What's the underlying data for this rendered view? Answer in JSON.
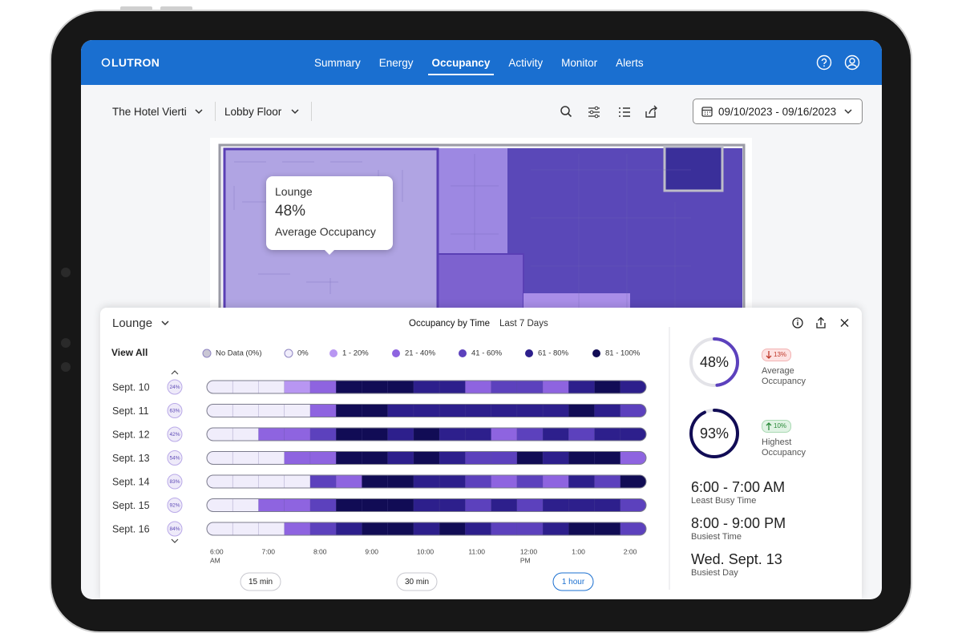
{
  "nav": {
    "logo": "LUTRON",
    "tabs": [
      "Summary",
      "Energy",
      "Occupancy",
      "Activity",
      "Monitor",
      "Alerts"
    ],
    "active": 2
  },
  "filters": {
    "property": "The Hotel Vierti",
    "floor": "Lobby Floor",
    "date_range": "09/10/2023 - 09/16/2023"
  },
  "tooltip": {
    "room": "Lounge",
    "value": "48%",
    "caption": "Average Occupancy"
  },
  "panel": {
    "room": "Lounge",
    "title": "Occupancy by Time",
    "period": "Last 7 Days",
    "view_all": "View All",
    "legend": [
      {
        "label": "No Data (0%)",
        "color": "#c9c6d4"
      },
      {
        "label": "0%",
        "color": "#f0edfb"
      },
      {
        "label": "1 - 20%",
        "color": "#b896f2"
      },
      {
        "label": "21 - 40%",
        "color": "#8e64e0"
      },
      {
        "label": "41 - 60%",
        "color": "#5c41bd"
      },
      {
        "label": "61 - 80%",
        "color": "#2d1f8c"
      },
      {
        "label": "81 - 100%",
        "color": "#110c55"
      }
    ],
    "rows": [
      {
        "date": "Sept. 10",
        "badge": "24%",
        "levels": [
          1,
          1,
          1,
          2,
          3,
          6,
          6,
          6,
          5,
          5,
          3,
          4,
          4,
          3,
          5,
          6,
          5
        ]
      },
      {
        "date": "Sept. 11",
        "badge": "63%",
        "levels": [
          1,
          1,
          1,
          1,
          3,
          6,
          6,
          5,
          5,
          5,
          5,
          5,
          5,
          5,
          6,
          5,
          4
        ]
      },
      {
        "date": "Sept. 12",
        "badge": "42%",
        "levels": [
          1,
          1,
          3,
          3,
          4,
          6,
          6,
          5,
          6,
          5,
          5,
          3,
          4,
          5,
          4,
          5,
          5
        ]
      },
      {
        "date": "Sept. 13",
        "badge": "54%",
        "levels": [
          1,
          1,
          1,
          3,
          3,
          6,
          6,
          5,
          6,
          5,
          4,
          4,
          6,
          5,
          6,
          6,
          3
        ]
      },
      {
        "date": "Sept. 14",
        "badge": "83%",
        "levels": [
          1,
          1,
          1,
          1,
          4,
          3,
          6,
          6,
          5,
          5,
          4,
          3,
          4,
          3,
          5,
          4,
          6
        ]
      },
      {
        "date": "Sept. 15",
        "badge": "92%",
        "levels": [
          1,
          1,
          3,
          3,
          4,
          6,
          6,
          6,
          5,
          5,
          4,
          5,
          4,
          5,
          5,
          5,
          4
        ]
      },
      {
        "date": "Sept. 16",
        "badge": "84%",
        "levels": [
          1,
          1,
          1,
          3,
          4,
          5,
          6,
          6,
          5,
          6,
          5,
          4,
          4,
          5,
          6,
          6,
          4
        ]
      }
    ],
    "times": [
      [
        "6:00",
        "AM"
      ],
      [
        "7:00"
      ],
      [
        "8:00"
      ],
      [
        "9:00"
      ],
      [
        "10:00"
      ],
      [
        "11:00"
      ],
      [
        "12:00",
        "PM"
      ],
      [
        "1:00"
      ],
      [
        "2:00"
      ]
    ],
    "intervals": [
      "15 min",
      "30 min",
      "1 hour"
    ],
    "active_interval": 2
  },
  "stats": {
    "average": {
      "value": 48,
      "label": "48%",
      "change": "13%",
      "caption": "Average Occupancy",
      "color": "#5c41bd"
    },
    "highest": {
      "value": 93,
      "label": "93%",
      "change": "10%",
      "caption": "Highest Occupancy",
      "color": "#110c55"
    },
    "least_busy": {
      "value": "6:00 - 7:00 AM",
      "caption": "Least Busy Time"
    },
    "busiest_time": {
      "value": "8:00 - 9:00 PM",
      "caption": "Busiest Time"
    },
    "busiest_day": {
      "value": "Wed. Sept. 13",
      "caption": "Busiest Day"
    }
  }
}
